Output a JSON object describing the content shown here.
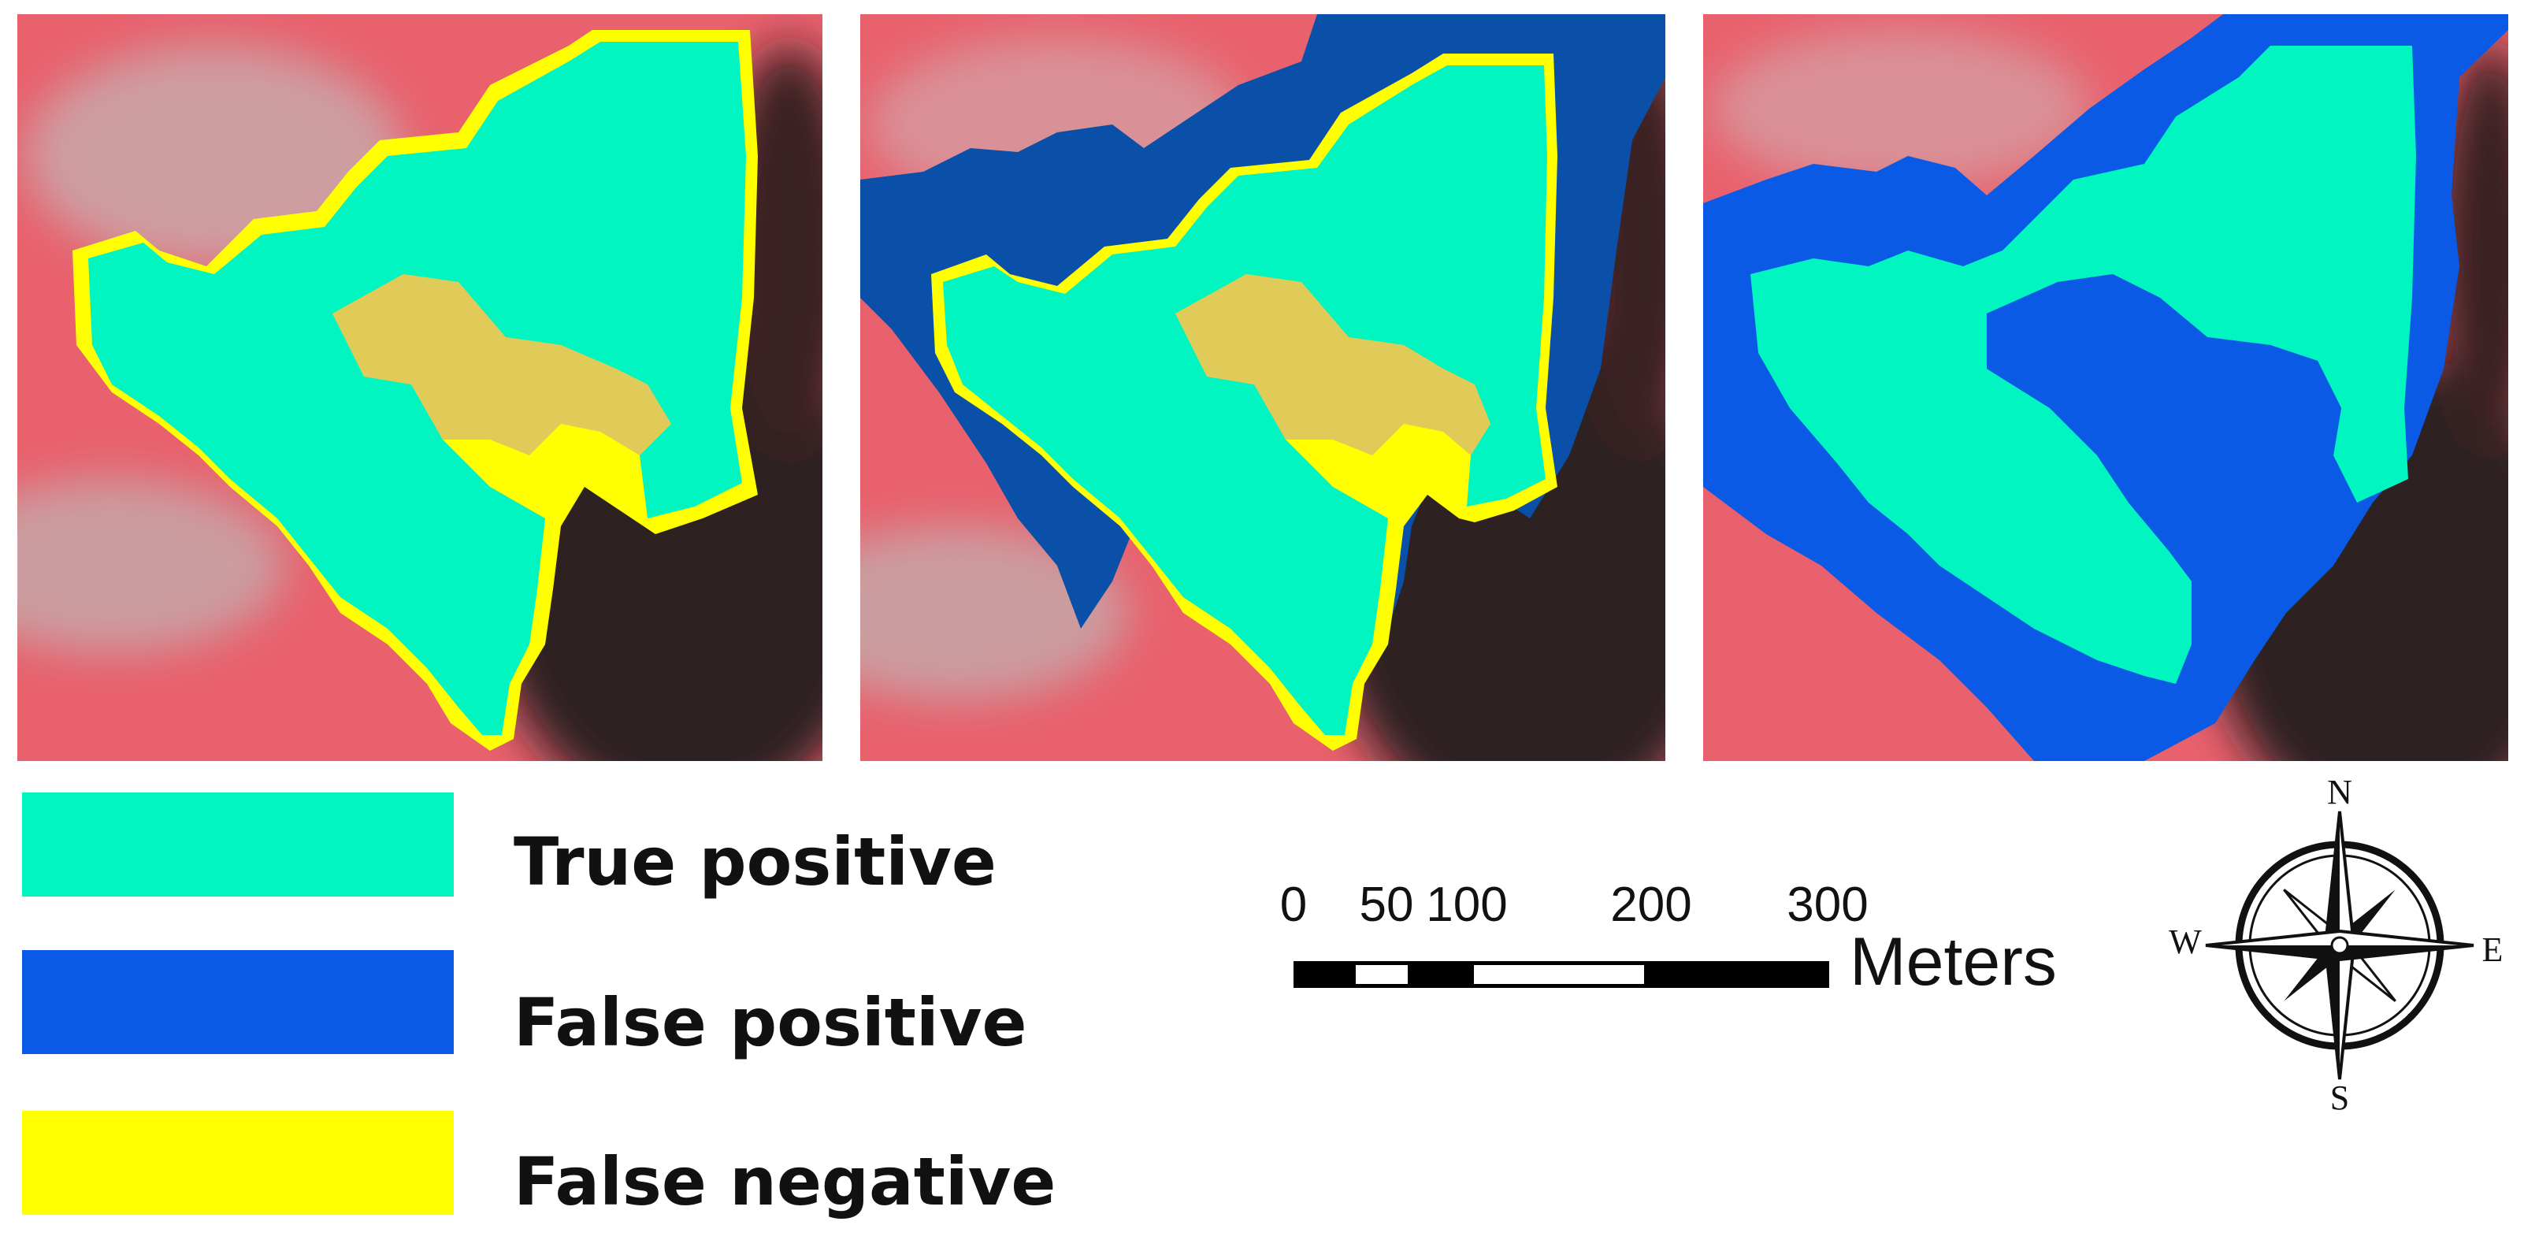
{
  "panels": [
    {
      "name": "panel-1",
      "description_classes": [
        "True positive",
        "False negative"
      ]
    },
    {
      "name": "panel-2",
      "description_classes": [
        "True positive",
        "False positive",
        "False negative"
      ]
    },
    {
      "name": "panel-3",
      "description_classes": [
        "True positive",
        "False positive"
      ]
    }
  ],
  "colors": {
    "true_positive": "#00f5c0",
    "false_positive_dark": "#0a4fa8",
    "false_positive": "#0a5ae6",
    "false_negative": "#ffff00",
    "background_red": "#e8616d",
    "shadow_dark": "#0b1216"
  },
  "legend": {
    "items": [
      {
        "label": "True positive",
        "color": "#00f5c0"
      },
      {
        "label": "False positive",
        "color": "#0a5ae6"
      },
      {
        "label": "False negative",
        "color": "#ffff00"
      }
    ]
  },
  "scale_bar": {
    "ticks": [
      "0",
      "50",
      "100",
      "200",
      "300"
    ],
    "units": "Meters"
  },
  "north_arrow": {
    "n": "N",
    "s": "S",
    "e": "E",
    "w": "W"
  }
}
